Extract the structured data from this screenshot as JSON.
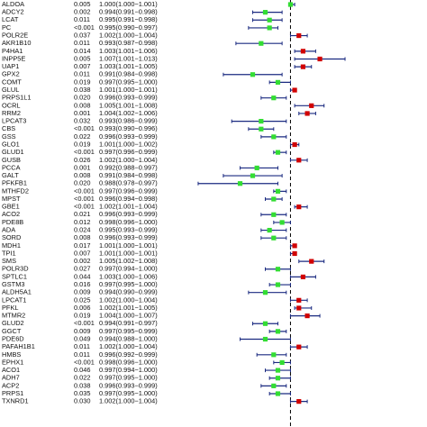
{
  "chart_data": {
    "type": "forest",
    "categories": [
      "ALDOA",
      "ADCY2",
      "LCAT",
      "PC",
      "POLR2E",
      "AKR1B10",
      "P4HA1",
      "INPP5E",
      "UAP1",
      "GPX2",
      "COMT",
      "GLUL",
      "PRPS1L1",
      "OCRL",
      "RRM2",
      "LPCAT3",
      "CBS",
      "GSS",
      "GLO1",
      "GLUD1",
      "GUSB",
      "PCCA",
      "GALT",
      "PFKFB1",
      "MTHFD2",
      "MPST",
      "GBE1",
      "ACO2",
      "PDE8B",
      "ADA",
      "SORD",
      "MDH1",
      "TPI1",
      "SMS",
      "POLR3D",
      "SPTLC1",
      "GSTM3",
      "ALDH5A1",
      "LPCAT1",
      "PFKL",
      "MTMR2",
      "GLUD2",
      "GGCT",
      "PDE6D",
      "PAFAH1B1",
      "HMBS",
      "EPHX1",
      "ACO1",
      "ADH7",
      "ACP2",
      "PRPS1",
      "TXNRD1"
    ],
    "p_values": [
      "0.005",
      "0.002",
      "0.011",
      "<0.001",
      "0.037",
      "0.011",
      "0.014",
      "0.005",
      "0.007",
      "0.011",
      "0.019",
      "0.038",
      "0.020",
      "0.008",
      "0.001",
      "0.032",
      "<0.001",
      "0.022",
      "0.019",
      "<0.001",
      "0.026",
      "0.001",
      "0.008",
      "0.020",
      "<0.001",
      "<0.001",
      "<0.001",
      "0.021",
      "0.012",
      "0.024",
      "0.008",
      "0.017",
      "0.007",
      "0.002",
      "0.027",
      "0.044",
      "0.016",
      "0.009",
      "0.025",
      "0.006",
      "0.019",
      "<0.001",
      "0.009",
      "0.049",
      "0.011",
      "0.011",
      "<0.001",
      "0.046",
      "0.022",
      "0.038",
      "0.035",
      "0.030"
    ],
    "values": [
      1.0,
      0.994,
      0.995,
      0.995,
      1.002,
      0.993,
      1.003,
      1.007,
      1.003,
      0.991,
      0.997,
      1.001,
      0.996,
      1.005,
      1.004,
      0.993,
      0.993,
      0.996,
      1.001,
      0.997,
      1.002,
      0.992,
      0.991,
      0.988,
      0.997,
      0.996,
      1.002,
      0.996,
      0.998,
      0.995,
      0.996,
      1.001,
      1.001,
      1.005,
      0.997,
      1.003,
      0.997,
      0.994,
      1.002,
      1.002,
      1.004,
      0.994,
      0.997,
      0.994,
      1.002,
      0.996,
      0.998,
      0.997,
      0.997,
      0.996,
      0.997,
      1.002
    ],
    "lows": [
      1.0,
      0.991,
      0.991,
      0.99,
      1.0,
      0.987,
      1.001,
      1.001,
      1.001,
      0.984,
      0.995,
      1.0,
      0.993,
      1.001,
      1.002,
      0.986,
      0.99,
      0.993,
      1.0,
      0.996,
      1.0,
      0.988,
      0.984,
      0.978,
      0.996,
      0.994,
      1.001,
      0.993,
      0.996,
      0.993,
      0.993,
      1.0,
      1.0,
      1.002,
      0.994,
      1.0,
      0.995,
      0.99,
      1.0,
      1.001,
      1.0,
      0.991,
      0.995,
      0.988,
      1.0,
      0.992,
      0.996,
      0.994,
      0.995,
      0.993,
      0.995,
      1.0
    ],
    "highs": [
      1.001,
      0.998,
      0.998,
      0.997,
      1.004,
      0.998,
      1.006,
      1.013,
      1.005,
      0.998,
      1.0,
      1.001,
      0.999,
      1.008,
      1.006,
      0.999,
      0.996,
      0.999,
      1.002,
      0.999,
      1.004,
      0.997,
      0.998,
      0.997,
      0.999,
      0.998,
      1.004,
      0.999,
      1.0,
      0.999,
      0.999,
      1.001,
      1.001,
      1.008,
      1.0,
      1.006,
      1.0,
      0.999,
      1.004,
      1.005,
      1.007,
      0.997,
      0.999,
      1.0,
      1.004,
      0.999,
      1.0,
      1.0,
      1.0,
      0.999,
      1.0,
      1.004
    ],
    "value_labels": [
      "1.000(1.000−1.001)",
      "0.994(0.991−0.998)",
      "0.995(0.991−0.998)",
      "0.995(0.990−0.997)",
      "1.002(1.000−1.004)",
      "0.993(0.987−0.998)",
      "1.003(1.001−1.006)",
      "1.007(1.001−1.013)",
      "1.003(1.001−1.005)",
      "0.991(0.984−0.998)",
      "0.997(0.995−1.000)",
      "1.001(1.000−1.001)",
      "0.996(0.993−0.999)",
      "1.005(1.001−1.008)",
      "1.004(1.002−1.006)",
      "0.993(0.986−0.999)",
      "0.993(0.990−0.996)",
      "0.996(0.993−0.999)",
      "1.001(1.000−1.002)",
      "0.997(0.996−0.999)",
      "1.002(1.000−1.004)",
      "0.992(0.988−0.997)",
      "0.991(0.984−0.998)",
      "0.988(0.978−0.997)",
      "0.997(0.996−0.999)",
      "0.996(0.994−0.998)",
      "1.002(1.001−1.004)",
      "0.996(0.993−0.999)",
      "0.998(0.996−1.000)",
      "0.995(0.993−0.999)",
      "0.996(0.993−0.999)",
      "1.001(1.000−1.001)",
      "1.001(1.000−1.001)",
      "1.005(1.002−1.008)",
      "0.997(0.994−1.000)",
      "1.003(1.000−1.006)",
      "0.997(0.995−1.000)",
      "0.994(0.990−0.999)",
      "1.002(1.000−1.004)",
      "1.002(1.001−1.005)",
      "1.004(1.000−1.007)",
      "0.994(0.991−0.997)",
      "0.997(0.995−0.999)",
      "0.994(0.988−1.000)",
      "1.002(1.000−1.004)",
      "0.996(0.992−0.999)",
      "0.998(0.996−1.000)",
      "0.997(0.994−1.000)",
      "0.997(0.995−1.000)",
      "0.996(0.993−0.999)",
      "0.997(0.995−1.000)",
      "1.002(1.000−1.004)"
    ],
    "xlim": [
      0.972,
      1.016
    ],
    "reference_line": 1,
    "color_above": "#d10000",
    "color_below": "#33dd33",
    "line_color": "#1a2a80"
  }
}
